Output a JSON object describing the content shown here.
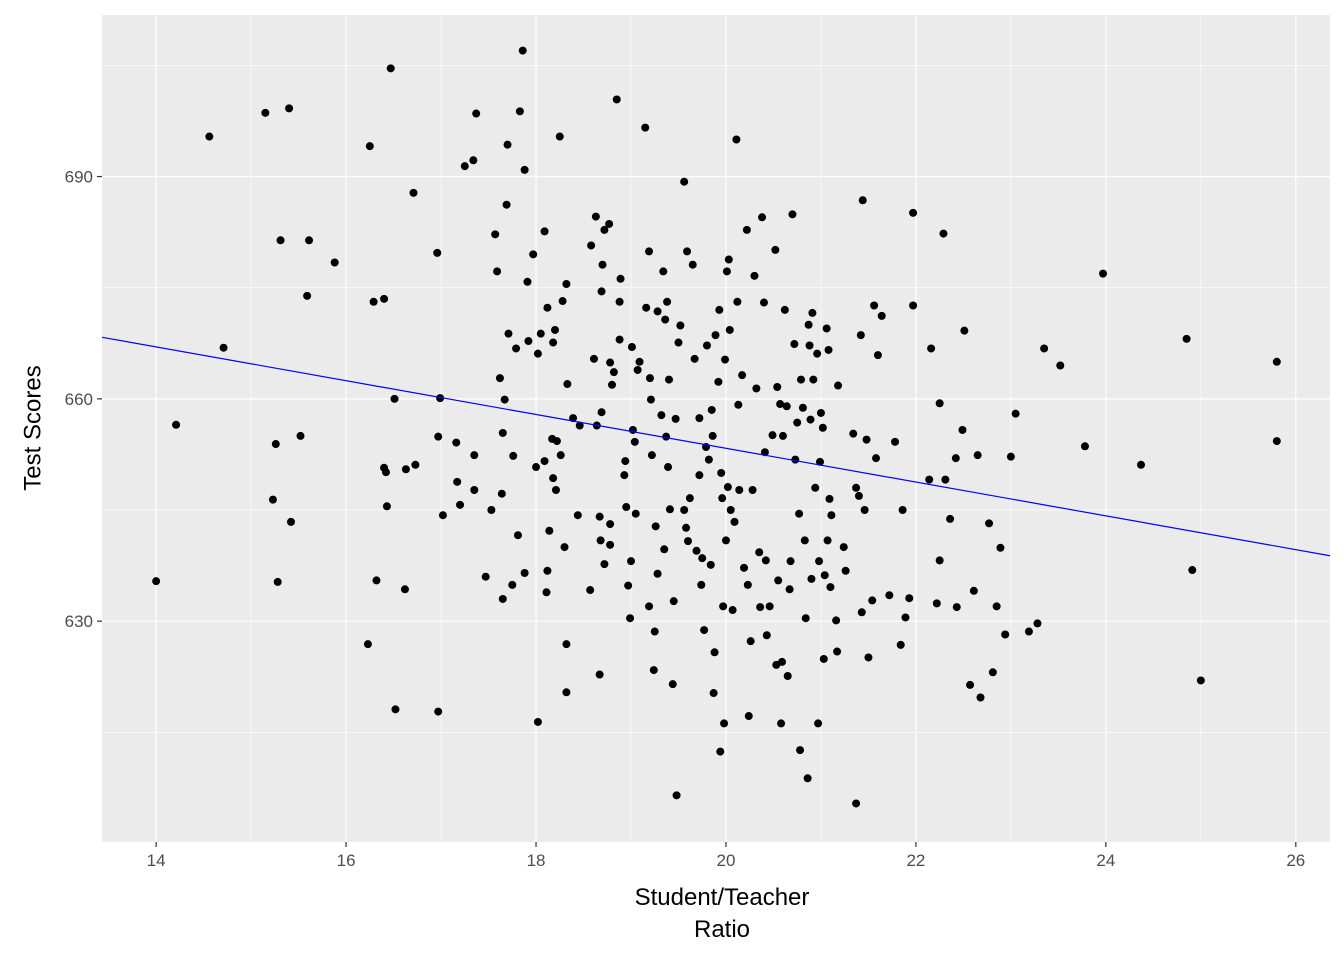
{
  "chart_data": {
    "type": "scatter",
    "x_label": "Student/Teacher\nRatio",
    "y_label": "Test Scores",
    "xlim": [
      13.43,
      26.36
    ],
    "ylim": [
      600.2,
      711.8
    ],
    "xticks": [
      14,
      16,
      18,
      20,
      22,
      24,
      26
    ],
    "yticks": [
      630,
      660,
      690
    ],
    "grid": true,
    "color": "#000000",
    "fit_line": {
      "intercept": 698.93,
      "slope": -2.28,
      "color": "#0000ff"
    },
    "x": [
      14.0,
      14.21,
      14.56,
      14.71,
      15.15,
      15.23,
      15.26,
      15.28,
      15.31,
      15.4,
      15.42,
      15.52,
      15.59,
      15.61,
      15.88,
      16.23,
      16.25,
      16.29,
      16.32,
      16.4,
      16.4,
      16.42,
      16.43,
      16.47,
      16.51,
      16.52,
      16.62,
      16.63,
      16.71,
      16.73,
      16.96,
      16.97,
      16.97,
      16.99,
      17.02,
      17.16,
      17.17,
      17.2,
      17.25,
      17.34,
      17.35,
      17.37,
      17.35,
      17.47,
      17.53,
      17.57,
      17.59,
      17.62,
      17.64,
      17.65,
      17.65,
      17.67,
      17.69,
      17.7,
      17.71,
      17.75,
      17.76,
      17.79,
      17.81,
      17.83,
      17.86,
      17.88,
      17.88,
      17.91,
      17.92,
      17.97,
      18.0,
      18.02,
      18.02,
      18.05,
      18.09,
      18.09,
      18.11,
      18.12,
      18.12,
      18.14,
      18.17,
      18.18,
      18.18,
      18.2,
      18.21,
      18.22,
      18.25,
      18.26,
      18.28,
      18.3,
      18.32,
      18.32,
      18.32,
      18.33,
      18.39,
      18.44,
      18.46,
      18.57,
      18.58,
      18.61,
      18.63,
      18.64,
      18.67,
      18.67,
      18.68,
      18.69,
      18.69,
      18.7,
      18.72,
      18.72,
      18.77,
      18.78,
      18.78,
      18.78,
      18.8,
      18.82,
      18.85,
      18.88,
      18.88,
      18.89,
      18.93,
      18.94,
      18.95,
      18.97,
      18.99,
      19.0,
      19.01,
      19.02,
      19.04,
      19.05,
      19.07,
      19.09,
      19.15,
      19.16,
      19.19,
      19.19,
      19.2,
      19.21,
      19.22,
      19.24,
      19.25,
      19.26,
      19.28,
      19.28,
      19.32,
      19.34,
      19.35,
      19.36,
      19.37,
      19.38,
      19.39,
      19.4,
      19.41,
      19.44,
      19.45,
      19.47,
      19.48,
      19.5,
      19.52,
      19.56,
      19.56,
      19.58,
      19.59,
      19.6,
      19.62,
      19.65,
      19.67,
      19.69,
      19.72,
      19.72,
      19.74,
      19.75,
      19.77,
      19.79,
      19.8,
      19.82,
      19.84,
      19.85,
      19.86,
      19.87,
      19.88,
      19.89,
      19.92,
      19.93,
      19.94,
      19.95,
      19.96,
      19.97,
      19.98,
      19.99,
      20.0,
      20.01,
      20.02,
      20.03,
      20.04,
      20.05,
      20.07,
      20.09,
      20.11,
      20.12,
      20.13,
      20.14,
      20.17,
      20.19,
      20.22,
      20.23,
      20.24,
      20.26,
      20.28,
      20.3,
      20.32,
      20.35,
      20.36,
      20.38,
      20.4,
      20.41,
      20.42,
      20.43,
      20.46,
      20.49,
      20.52,
      20.53,
      20.54,
      20.55,
      20.57,
      20.58,
      20.59,
      20.6,
      20.62,
      20.64,
      20.65,
      20.67,
      20.68,
      20.7,
      20.72,
      20.73,
      20.75,
      20.77,
      20.78,
      20.79,
      20.81,
      20.83,
      20.84,
      20.86,
      20.87,
      20.88,
      20.89,
      20.9,
      20.91,
      20.92,
      20.94,
      20.96,
      20.97,
      20.98,
      20.99,
      21.0,
      21.02,
      21.03,
      21.04,
      21.06,
      21.07,
      21.08,
      21.09,
      21.1,
      21.11,
      21.16,
      21.17,
      21.18,
      21.24,
      21.26,
      21.34,
      21.37,
      21.37,
      21.4,
      21.42,
      21.43,
      21.44,
      21.46,
      21.48,
      21.5,
      21.54,
      21.56,
      21.58,
      21.6,
      21.64,
      21.72,
      21.78,
      21.84,
      21.86,
      21.89,
      21.93,
      21.97,
      21.97,
      22.14,
      22.16,
      22.22,
      22.25,
      22.25,
      22.29,
      22.31,
      22.36,
      22.42,
      22.43,
      22.49,
      22.51,
      22.57,
      22.61,
      22.65,
      22.68,
      22.77,
      22.81,
      22.85,
      22.89,
      22.94,
      23.0,
      23.05,
      23.19,
      23.28,
      23.35,
      23.52,
      23.78,
      23.97,
      24.37,
      24.85,
      24.91,
      25.0,
      25.8,
      25.8
    ],
    "values": [
      635.4,
      656.5,
      695.4,
      666.9,
      698.6,
      646.4,
      653.9,
      635.3,
      681.4,
      699.2,
      643.4,
      655.0,
      673.9,
      681.4,
      678.4,
      626.9,
      694.1,
      673.1,
      635.5,
      673.5,
      650.7,
      650.1,
      645.5,
      704.6,
      660.0,
      618.1,
      634.3,
      650.5,
      687.8,
      651.1,
      679.7,
      617.8,
      654.9,
      660.1,
      644.3,
      654.1,
      648.8,
      645.7,
      691.4,
      692.2,
      652.4,
      698.5,
      647.7,
      636.0,
      645.0,
      682.2,
      677.2,
      662.8,
      647.2,
      655.4,
      633.0,
      659.9,
      686.2,
      694.3,
      668.8,
      634.9,
      652.3,
      666.8,
      641.6,
      698.8,
      707.0,
      690.9,
      636.5,
      675.8,
      667.8,
      679.5,
      650.8,
      616.4,
      666.1,
      668.8,
      682.6,
      651.6,
      633.9,
      672.3,
      636.8,
      642.2,
      654.6,
      667.6,
      649.3,
      669.3,
      647.7,
      654.3,
      695.4,
      652.4,
      673.2,
      640.0,
      675.5,
      626.9,
      620.4,
      662.0,
      657.4,
      644.3,
      656.4,
      634.2,
      680.7,
      665.4,
      684.6,
      656.4,
      622.8,
      644.1,
      640.9,
      674.5,
      658.2,
      678.1,
      637.7,
      682.8,
      683.6,
      640.3,
      643.1,
      664.9,
      661.9,
      663.6,
      700.4,
      668.0,
      673.1,
      676.2,
      649.7,
      651.6,
      645.4,
      634.8,
      630.4,
      638.1,
      667.0,
      655.8,
      654.2,
      644.5,
      663.9,
      665.0,
      696.6,
      672.3,
      679.9,
      632.0,
      662.8,
      659.9,
      652.4,
      623.4,
      628.6,
      642.8,
      671.8,
      636.4,
      657.8,
      677.2,
      639.7,
      670.7,
      654.9,
      673.1,
      650.8,
      662.6,
      645.1,
      621.5,
      632.7,
      657.3,
      606.5,
      667.6,
      669.9,
      689.3,
      645.0,
      642.6,
      679.9,
      640.8,
      646.6,
      678.1,
      665.4,
      639.5,
      657.4,
      649.7,
      634.9,
      638.5,
      628.8,
      653.5,
      667.2,
      651.8,
      637.6,
      658.5,
      655.0,
      620.3,
      625.8,
      668.6,
      662.3,
      672.0,
      612.4,
      650.0,
      646.6,
      632.0,
      616.2,
      665.3,
      640.9,
      677.2,
      648.1,
      678.8,
      669.3,
      645.0,
      631.5,
      643.4,
      695.0,
      673.1,
      659.2,
      647.7,
      663.2,
      637.2,
      682.8,
      634.9,
      617.2,
      627.3,
      647.7,
      676.6,
      661.4,
      639.3,
      631.9,
      684.5,
      673.0,
      652.8,
      638.2,
      628.1,
      632.0,
      655.1,
      680.1,
      624.1,
      661.6,
      635.5,
      659.3,
      616.2,
      624.5,
      655.0,
      672.0,
      659.0,
      622.6,
      634.3,
      638.1,
      684.9,
      667.4,
      651.8,
      656.8,
      644.5,
      612.6,
      662.6,
      658.8,
      640.9,
      630.4,
      608.8,
      670.0,
      667.2,
      657.2,
      635.7,
      671.6,
      662.6,
      648.0,
      666.1,
      616.2,
      638.1,
      651.5,
      658.1,
      656.1,
      624.9,
      636.2,
      669.5,
      640.9,
      666.6,
      646.5,
      634.6,
      644.3,
      630.1,
      625.9,
      661.8,
      640.0,
      636.8,
      655.3,
      605.4,
      648.0,
      646.9,
      668.6,
      631.2,
      686.8,
      645.0,
      654.5,
      625.1,
      632.8,
      672.6,
      652.0,
      665.9,
      671.2,
      633.5,
      654.2,
      626.8,
      645.0,
      630.5,
      633.1,
      685.1,
      672.6,
      649.1,
      666.8,
      632.4,
      659.4,
      638.2,
      682.3,
      649.1,
      643.8,
      652.0,
      631.9,
      655.8,
      669.2,
      621.4,
      634.1,
      652.4,
      619.7,
      643.2,
      623.1,
      632.0,
      639.9,
      628.2,
      652.2,
      658.0,
      628.6,
      629.7,
      666.8,
      664.5,
      653.6,
      676.9,
      651.1,
      668.1,
      636.9,
      622.0,
      665.0,
      654.3
    ]
  }
}
